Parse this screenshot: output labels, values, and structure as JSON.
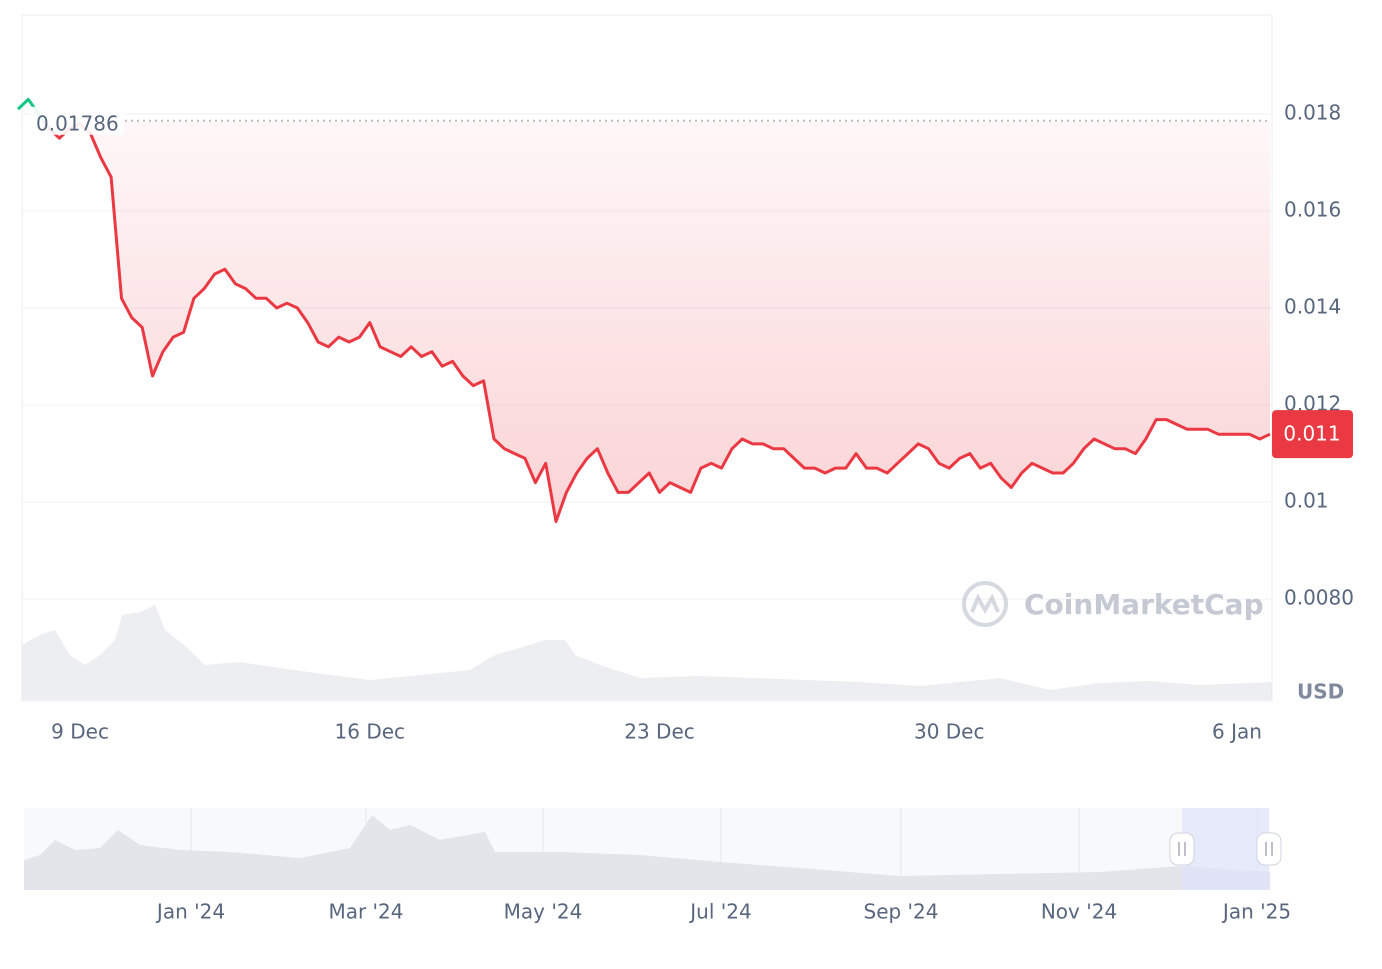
{
  "chart_data": {
    "type": "line",
    "series": [
      {
        "name": "Price",
        "color": "#ea3943",
        "up_color": "#16c784",
        "values": [
          0.0181,
          0.0183,
          0.018,
          0.0177,
          0.0175,
          0.0177,
          0.0178,
          0.0176,
          0.0171,
          0.0167,
          0.0142,
          0.0138,
          0.0136,
          0.0126,
          0.0131,
          0.0134,
          0.0135,
          0.0142,
          0.0144,
          0.0147,
          0.0148,
          0.0145,
          0.0144,
          0.0142,
          0.0142,
          0.014,
          0.0141,
          0.014,
          0.0137,
          0.0133,
          0.0132,
          0.0134,
          0.0133,
          0.0134,
          0.0137,
          0.0132,
          0.0131,
          0.013,
          0.0132,
          0.013,
          0.0131,
          0.0128,
          0.0129,
          0.0126,
          0.0124,
          0.0125,
          0.0113,
          0.0111,
          0.011,
          0.0109,
          0.0104,
          0.0108,
          0.0096,
          0.0102,
          0.0106,
          0.0109,
          0.0111,
          0.0106,
          0.0102,
          0.0102,
          0.0104,
          0.0106,
          0.0102,
          0.0104,
          0.0103,
          0.0102,
          0.0107,
          0.0108,
          0.0107,
          0.0111,
          0.0113,
          0.0112,
          0.0112,
          0.0111,
          0.0111,
          0.0109,
          0.0107,
          0.0107,
          0.0106,
          0.0107,
          0.0107,
          0.011,
          0.0107,
          0.0107,
          0.0106,
          0.0108,
          0.011,
          0.0112,
          0.0111,
          0.0108,
          0.0107,
          0.0109,
          0.011,
          0.0107,
          0.0108,
          0.0105,
          0.0103,
          0.0106,
          0.0108,
          0.0107,
          0.0106,
          0.0106,
          0.0108,
          0.0111,
          0.0113,
          0.0112,
          0.0111,
          0.0111,
          0.011,
          0.0113,
          0.0117,
          0.0117,
          0.0116,
          0.0115,
          0.0115,
          0.0115,
          0.0114,
          0.0114,
          0.0114,
          0.0114,
          0.0113,
          0.0114
        ]
      }
    ],
    "categories": [
      null,
      null,
      null,
      null,
      null,
      null,
      "9 Dec",
      null,
      null,
      null,
      null,
      null,
      null,
      null,
      null,
      null,
      null,
      null,
      null,
      null,
      null,
      null,
      null,
      null,
      null,
      null,
      null,
      null,
      null,
      null,
      null,
      null,
      null,
      null,
      "16 Dec",
      null,
      null,
      null,
      null,
      null,
      null,
      null,
      null,
      null,
      null,
      null,
      null,
      null,
      null,
      null,
      null,
      null,
      null,
      null,
      null,
      null,
      null,
      null,
      null,
      null,
      null,
      null,
      "23 Dec",
      null,
      null,
      null,
      null,
      null,
      null,
      null,
      null,
      null,
      null,
      null,
      null,
      null,
      null,
      null,
      null,
      null,
      null,
      null,
      null,
      null,
      null,
      null,
      null,
      null,
      null,
      null,
      "30 Dec",
      null,
      null,
      null,
      null,
      null,
      null,
      null,
      null,
      null,
      null,
      null,
      null,
      null,
      null,
      null,
      null,
      null,
      null,
      null,
      null,
      null,
      null,
      null,
      null,
      null,
      null,
      null,
      "6 Jan",
      null,
      null,
      null
    ],
    "ylim": [
      0.0059,
      0.02004
    ],
    "yticks": [
      {
        "value": 0.008,
        "label": "0.0080"
      },
      0.01,
      0.012,
      0.014,
      0.016,
      0.018
    ],
    "grid": true,
    "reference_line": 0.01786,
    "last_price_label": "0.011",
    "currency": "USD",
    "watermark": "CoinMarketCap",
    "navigator_labels": [
      "Jan '24",
      "Mar '24",
      "May '24",
      "Jul '24",
      "Sep '24",
      "Nov '24",
      "Jan '25"
    ]
  }
}
